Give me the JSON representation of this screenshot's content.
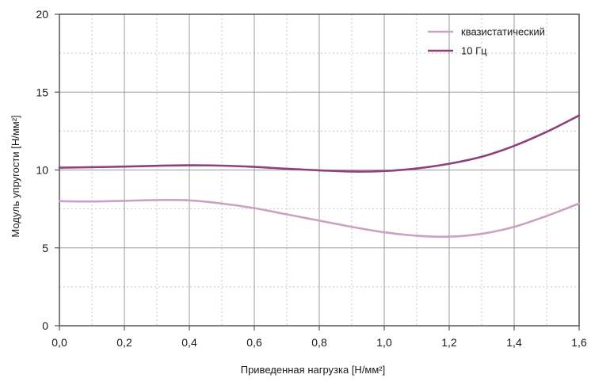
{
  "chart_data": {
    "type": "line",
    "title": "",
    "xlabel": "Приведенная нагрузка [Н/мм²]",
    "ylabel": "Модуль упругости [Н/мм²]",
    "xlim": [
      0,
      1.6
    ],
    "ylim": [
      0,
      20
    ],
    "x_ticks": [
      0,
      0.2,
      0.4,
      0.6,
      0.8,
      1.0,
      1.2,
      1.4,
      1.6
    ],
    "x_tick_labels": [
      "0,0",
      "0,2",
      "0,4",
      "0,6",
      "0,8",
      "1,0",
      "1,2",
      "1,4",
      "1,6"
    ],
    "y_ticks": [
      0,
      5,
      10,
      15,
      20
    ],
    "y_tick_labels": [
      "0",
      "5",
      "10",
      "15",
      "20"
    ],
    "grid": true,
    "legend_position": "top-right",
    "series": [
      {
        "name": "квазистатический",
        "color": "#c9a1c4",
        "x": [
          0,
          0.1,
          0.2,
          0.3,
          0.4,
          0.5,
          0.6,
          0.7,
          0.8,
          0.9,
          1.0,
          1.1,
          1.2,
          1.3,
          1.4,
          1.5,
          1.6
        ],
        "y": [
          8.0,
          7.98,
          8.02,
          8.07,
          8.05,
          7.85,
          7.55,
          7.15,
          6.75,
          6.35,
          6.0,
          5.78,
          5.72,
          5.9,
          6.35,
          7.05,
          7.85
        ]
      },
      {
        "name": "10 Гц",
        "color": "#8e3f7c",
        "x": [
          0,
          0.1,
          0.2,
          0.3,
          0.4,
          0.5,
          0.6,
          0.7,
          0.8,
          0.9,
          1.0,
          1.1,
          1.2,
          1.3,
          1.4,
          1.5,
          1.6
        ],
        "y": [
          10.15,
          10.18,
          10.22,
          10.27,
          10.3,
          10.28,
          10.2,
          10.08,
          9.98,
          9.9,
          9.93,
          10.1,
          10.4,
          10.85,
          11.55,
          12.45,
          13.5
        ]
      }
    ]
  }
}
